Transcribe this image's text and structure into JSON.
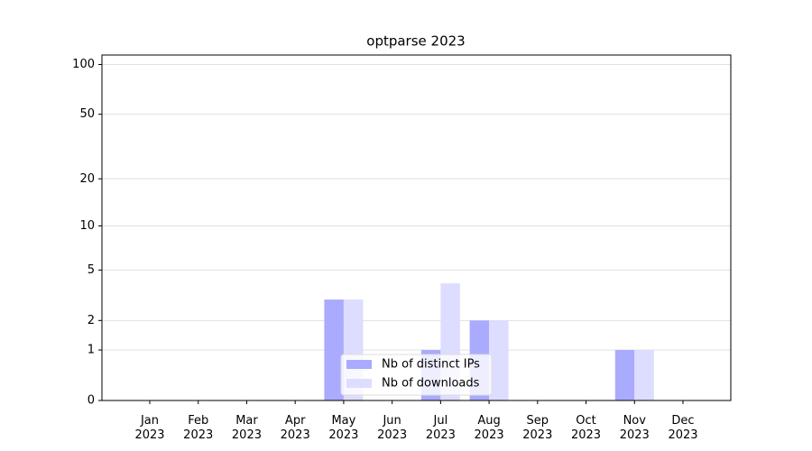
{
  "chart_data": {
    "type": "bar",
    "title": "optparse 2023",
    "categories": [
      "Jan\n2023",
      "Feb\n2023",
      "Mar\n2023",
      "Apr\n2023",
      "May\n2023",
      "Jun\n2023",
      "Jul\n2023",
      "Aug\n2023",
      "Sep\n2023",
      "Oct\n2023",
      "Nov\n2023",
      "Dec\n2023"
    ],
    "series": [
      {
        "name": "Nb of distinct IPs",
        "color": "#aaaaff",
        "values": [
          0,
          0,
          0,
          0,
          3,
          0,
          1,
          2,
          0,
          0,
          1,
          0
        ]
      },
      {
        "name": "Nb of downloads",
        "color": "#ddddff",
        "values": [
          0,
          0,
          0,
          0,
          3,
          0,
          4,
          2,
          0,
          0,
          1,
          0
        ]
      }
    ],
    "yscale": "log1p",
    "ylim": [
      0,
      114
    ],
    "yticks": [
      0,
      1,
      2,
      5,
      10,
      20,
      50,
      100
    ],
    "grid": true,
    "legend": "lower center"
  }
}
